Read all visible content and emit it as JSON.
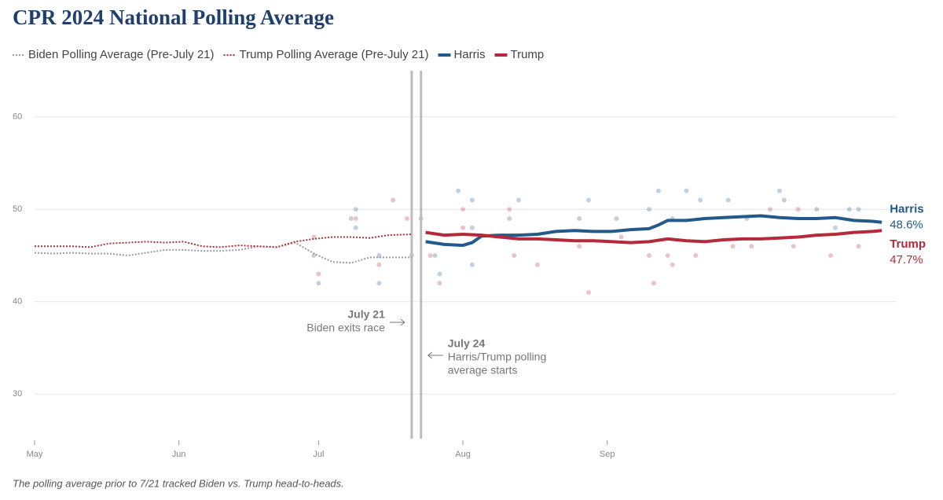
{
  "chart_data": {
    "type": "line",
    "title": "CPR 2024 National Polling Average",
    "footnote": "The polling average prior to 7/21 tracked Biden vs. Trump head-to-heads.",
    "xlim": [
      0,
      185
    ],
    "xticks": [
      {
        "value": 0,
        "label": "May"
      },
      {
        "value": 31,
        "label": "Jun"
      },
      {
        "value": 61,
        "label": "Jul"
      },
      {
        "value": 92,
        "label": "Aug"
      },
      {
        "value": 123,
        "label": "Sep"
      }
    ],
    "ylim": [
      25,
      65
    ],
    "yticks": [
      30,
      40,
      50,
      60
    ],
    "grid": true,
    "series": [
      {
        "name": "Biden Polling Average (Pre-July 21)",
        "color": "#9a9a9a",
        "dotted": true,
        "x": [
          0,
          4,
          8,
          12,
          16,
          20,
          24,
          28,
          32,
          36,
          40,
          44,
          48,
          52,
          56,
          60,
          64,
          68,
          72,
          76,
          81
        ],
        "values": [
          45.3,
          45.2,
          45.3,
          45.2,
          45.2,
          45.0,
          45.3,
          45.6,
          45.6,
          45.5,
          45.5,
          45.6,
          46.0,
          45.9,
          46.4,
          45.2,
          44.3,
          44.2,
          44.8,
          44.8,
          44.8
        ]
      },
      {
        "name": "Trump Polling Average (Pre-July 21)",
        "color": "#a8323f",
        "dotted": true,
        "x": [
          0,
          4,
          8,
          12,
          16,
          20,
          24,
          28,
          32,
          36,
          40,
          44,
          48,
          52,
          56,
          60,
          64,
          68,
          72,
          76,
          81
        ],
        "values": [
          46.0,
          46.0,
          46.0,
          45.9,
          46.3,
          46.4,
          46.5,
          46.4,
          46.5,
          46.0,
          45.9,
          46.1,
          46.0,
          45.9,
          46.5,
          46.8,
          47.0,
          47.0,
          46.9,
          47.2,
          47.3
        ]
      },
      {
        "name": "Harris",
        "color": "#24598c",
        "dotted": false,
        "end_value_label": "48.6%",
        "x": [
          84,
          88,
          92,
          94,
          96,
          100,
          104,
          108,
          112,
          116,
          120,
          124,
          128,
          132,
          134,
          136,
          140,
          144,
          148,
          152,
          156,
          160,
          164,
          168,
          172,
          176,
          180,
          182
        ],
        "values": [
          46.5,
          46.2,
          46.1,
          46.4,
          47.1,
          47.2,
          47.2,
          47.3,
          47.6,
          47.7,
          47.6,
          47.6,
          47.8,
          47.9,
          48.3,
          48.8,
          48.8,
          49.0,
          49.1,
          49.2,
          49.3,
          49.1,
          49.0,
          49.0,
          49.1,
          48.8,
          48.7,
          48.6
        ]
      },
      {
        "name": "Trump",
        "color": "#b52a3a",
        "dotted": false,
        "end_value_label": "47.7%",
        "x": [
          84,
          88,
          92,
          96,
          100,
          104,
          108,
          112,
          116,
          120,
          124,
          128,
          132,
          136,
          140,
          144,
          148,
          152,
          156,
          160,
          164,
          168,
          172,
          176,
          180,
          182
        ],
        "values": [
          47.5,
          47.2,
          47.3,
          47.2,
          47.0,
          46.8,
          46.8,
          46.7,
          46.6,
          46.6,
          46.5,
          46.4,
          46.5,
          46.8,
          46.6,
          46.5,
          46.7,
          46.8,
          46.8,
          46.9,
          47.0,
          47.2,
          47.3,
          47.5,
          47.6,
          47.7
        ]
      }
    ],
    "polls": [
      {
        "color": "#24598c",
        "x": [
          60,
          61,
          69,
          69,
          68,
          74,
          74,
          81,
          86,
          87,
          91,
          94,
          94,
          94,
          102,
          104,
          117,
          119,
          125,
          132,
          134,
          137,
          140,
          143,
          149,
          153,
          160,
          161,
          168,
          172,
          175,
          177
        ],
        "values": [
          45,
          42,
          50,
          48,
          49,
          42,
          45,
          45,
          45,
          43,
          52,
          51,
          48,
          44,
          49,
          51,
          49,
          51,
          49,
          50,
          52,
          49,
          52,
          51,
          51,
          49,
          52,
          51,
          50,
          48,
          50,
          50
        ]
      },
      {
        "color": "#b52a3a",
        "x": [
          60,
          61,
          69,
          74,
          77,
          80,
          83,
          85,
          87,
          92,
          92,
          102,
          103,
          108,
          117,
          119,
          126,
          132,
          133,
          136,
          137,
          142,
          150,
          154,
          158,
          164,
          163,
          171,
          177
        ],
        "values": [
          47,
          43,
          49,
          44,
          51,
          49,
          49,
          45,
          42,
          50,
          48,
          50,
          45,
          44,
          46,
          41,
          47,
          45,
          42,
          45,
          44,
          45,
          46,
          46,
          50,
          50,
          46,
          45,
          46
        ]
      }
    ],
    "events": [
      {
        "x": 81,
        "label": "July 21",
        "text": [
          "Biden exits race"
        ],
        "side": "left"
      },
      {
        "x": 83,
        "label": "July 24",
        "text": [
          "Harris/Trump polling",
          "average starts"
        ],
        "side": "right"
      }
    ]
  }
}
